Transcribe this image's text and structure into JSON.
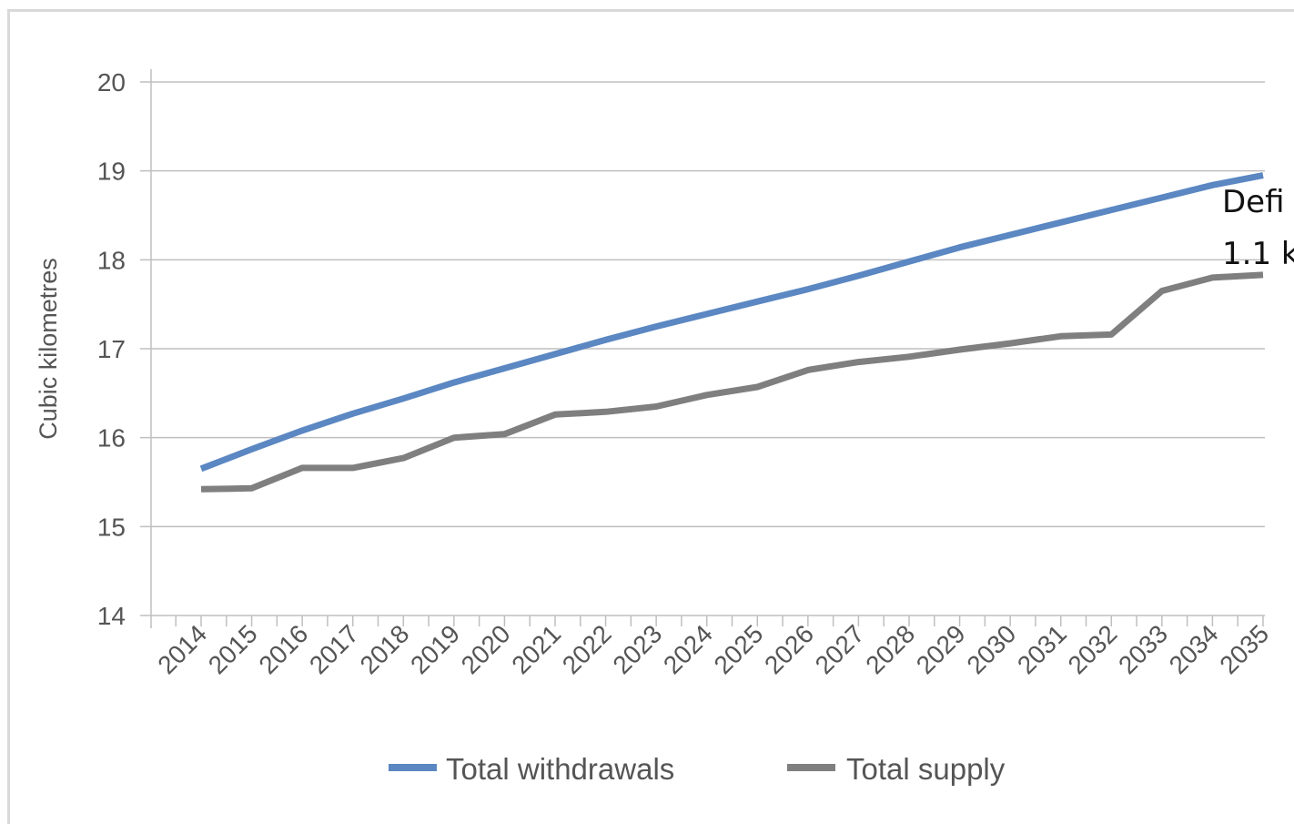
{
  "chart_data": {
    "type": "line",
    "title": "",
    "xlabel": "",
    "ylabel": "Cubic kilometres",
    "ylim": [
      14,
      20
    ],
    "yticks": [
      "14",
      "15",
      "16",
      "17",
      "18",
      "19",
      "20"
    ],
    "grid": true,
    "legend_position": "bottom",
    "x": [
      "2014",
      "2015",
      "2016",
      "2017",
      "2018",
      "2019",
      "2020",
      "2021",
      "2022",
      "2023",
      "2024",
      "2025",
      "2026",
      "2027",
      "2028",
      "2029",
      "2030",
      "2031",
      "2032",
      "2033",
      "2034",
      "2035"
    ],
    "series": [
      {
        "name": "Total withdrawals",
        "color": "#5b87c2",
        "values": [
          15.65,
          15.87,
          16.08,
          16.27,
          16.44,
          16.62,
          16.78,
          16.94,
          17.1,
          17.25,
          17.39,
          17.53,
          17.67,
          17.82,
          17.98,
          18.14,
          18.28,
          18.42,
          18.56,
          18.7,
          18.84,
          18.95
        ]
      },
      {
        "name": "Total supply",
        "color": "#7f7f7f",
        "values": [
          15.42,
          15.43,
          15.66,
          15.66,
          15.77,
          16.0,
          16.04,
          16.26,
          16.29,
          16.35,
          16.48,
          16.57,
          16.76,
          16.85,
          16.91,
          16.99,
          17.06,
          17.14,
          17.16,
          17.65,
          17.8,
          17.83
        ]
      }
    ],
    "annotation": {
      "lines": [
        "Defi",
        "1.1 k"
      ]
    }
  }
}
